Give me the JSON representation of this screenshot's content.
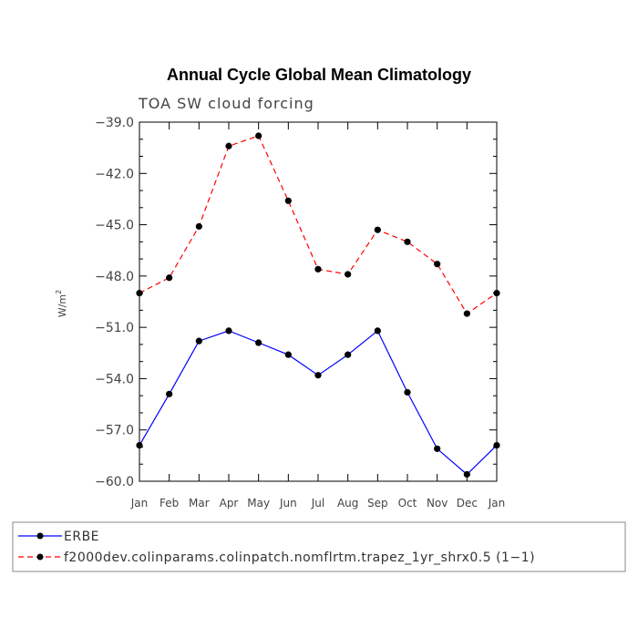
{
  "chart_data": {
    "type": "line",
    "title": "Annual Cycle Global Mean Climatology",
    "subtitle": "TOA SW cloud forcing",
    "ylabel": "W/m",
    "ylabel_sup": "2",
    "xlabel": "",
    "categories": [
      "Jan",
      "Feb",
      "Mar",
      "Apr",
      "May",
      "Jun",
      "Jul",
      "Aug",
      "Sep",
      "Oct",
      "Nov",
      "Dec",
      "Jan"
    ],
    "ylim": [
      -60.0,
      -39.0
    ],
    "yticks": [
      -39.0,
      -42.0,
      -45.0,
      -48.0,
      -51.0,
      -54.0,
      -57.0,
      -60.0
    ],
    "ytick_labels": [
      "−39.0",
      "−42.0",
      "−45.0",
      "−48.0",
      "−51.0",
      "−54.0",
      "−57.0",
      "−60.0"
    ],
    "series": [
      {
        "name": "ERBE",
        "color": "#0000ff",
        "dash": "solid",
        "values": [
          -57.9,
          -54.9,
          -51.8,
          -51.2,
          -51.9,
          -52.6,
          -53.8,
          -52.6,
          -51.2,
          -54.8,
          -58.1,
          -59.6,
          -57.9
        ]
      },
      {
        "name": "f2000dev.colinparams.colinpatch.nomflrtm.trapez_1yr_shrx0.5 (1−1)",
        "color": "#ff0000",
        "dash": "dashed",
        "values": [
          -49.0,
          -48.1,
          -45.1,
          -40.4,
          -39.8,
          -43.6,
          -47.6,
          -47.9,
          -45.3,
          -46.0,
          -47.3,
          -50.2,
          -49.0
        ]
      }
    ],
    "marker_color": "#000000",
    "legend_location": "bottom"
  }
}
